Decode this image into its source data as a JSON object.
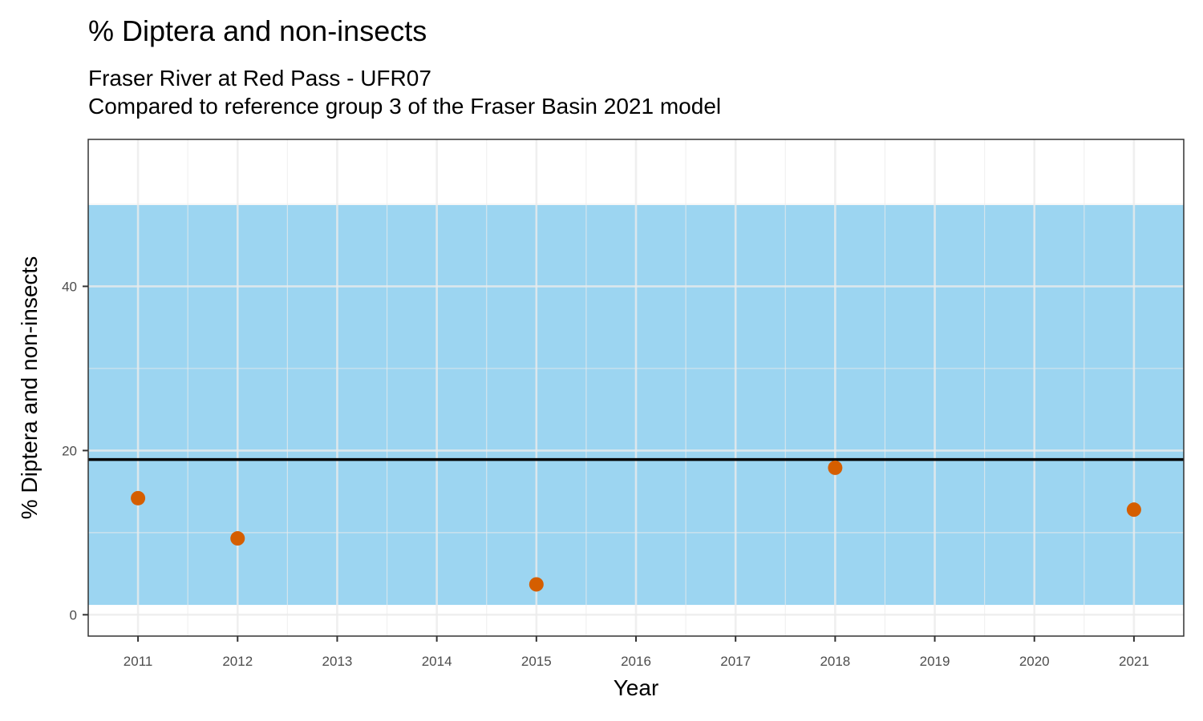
{
  "chart_data": {
    "type": "scatter",
    "title": "% Diptera and non-insects",
    "subtitle_lines": [
      "Fraser River at Red Pass - UFR07",
      "Compared to reference group 3 of the Fraser Basin 2021 model"
    ],
    "xlabel": "Year",
    "ylabel": "% Diptera and non-insects",
    "xlim": [
      2010.5,
      2021.5
    ],
    "ylim": [
      -2.6,
      57.9
    ],
    "x_ticks": [
      2011,
      2012,
      2013,
      2014,
      2015,
      2016,
      2017,
      2018,
      2019,
      2020,
      2021
    ],
    "x_tick_labels": [
      "2011",
      "2012",
      "2013",
      "2014",
      "2015",
      "2016",
      "2017",
      "2018",
      "2019",
      "2020",
      "2021"
    ],
    "y_ticks": [
      0,
      20,
      40
    ],
    "y_tick_labels": [
      "0",
      "20",
      "40"
    ],
    "grid": true,
    "reference_band": {
      "lower": 1.2,
      "upper": 49.9,
      "color": "#8ecfef"
    },
    "reference_line": {
      "value": 18.9,
      "color": "#000000"
    },
    "points_color": "#d55e00",
    "points": [
      {
        "x": 2011,
        "y": 14.2
      },
      {
        "x": 2012,
        "y": 9.3
      },
      {
        "x": 2015,
        "y": 3.7
      },
      {
        "x": 2018,
        "y": 17.9
      },
      {
        "x": 2021,
        "y": 12.8
      }
    ]
  }
}
